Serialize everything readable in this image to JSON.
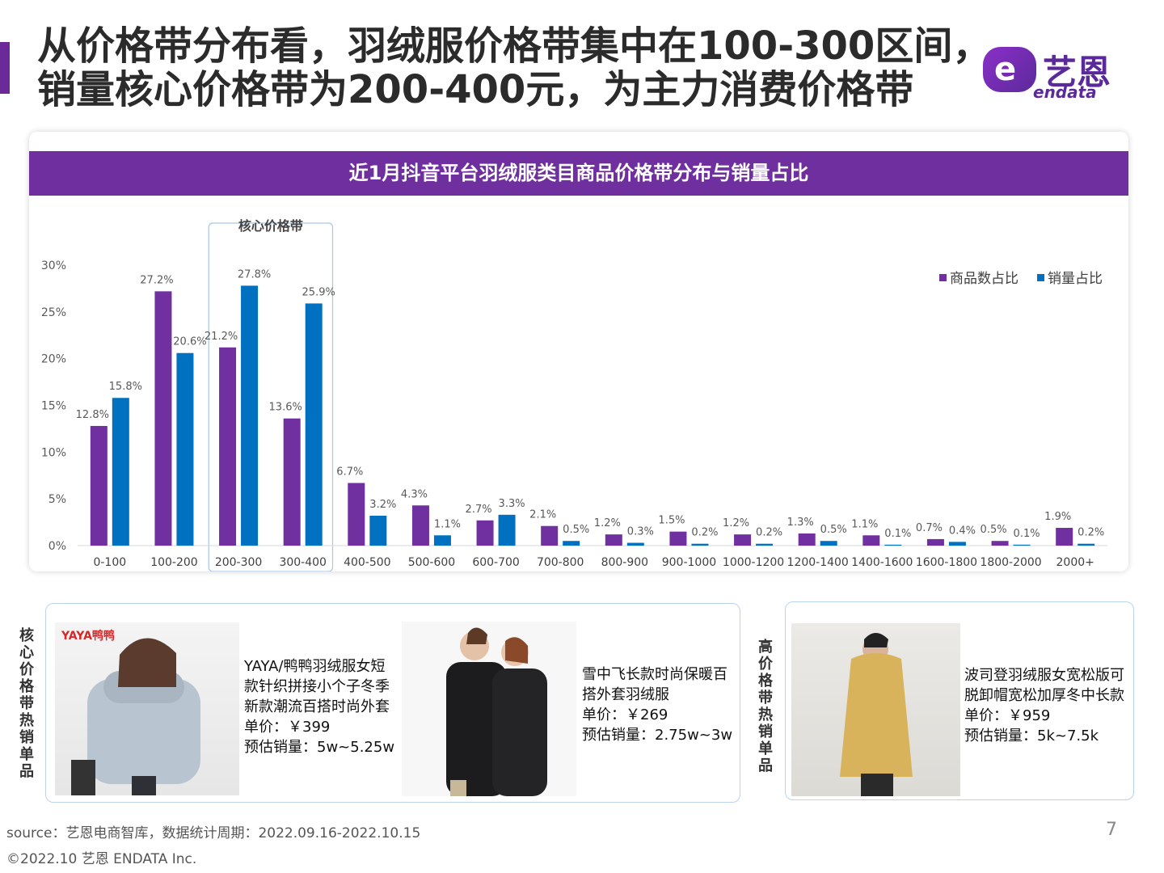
{
  "title": {
    "line1": "从价格带分布看，羽绒服价格带集中在100-300区间，",
    "line2": "销量核心价格带为200-400元，为主力消费价格带"
  },
  "logo": {
    "cn": "艺恩",
    "en": "endata",
    "mark": "e"
  },
  "chart": {
    "header": "近1月抖音平台羽绒服类目商品价格带分布与销量占比",
    "highlight_label": "核心价格带"
  },
  "chart_data": {
    "type": "bar",
    "categories": [
      "0-100",
      "100-200",
      "200-300",
      "300-400",
      "400-500",
      "500-600",
      "600-700",
      "700-800",
      "800-900",
      "900-1000",
      "1000-1200",
      "1200-1400",
      "1400-1600",
      "1600-1800",
      "1800-2000",
      "2000+"
    ],
    "series": [
      {
        "name": "商品数占比",
        "color": "#7030a0",
        "values": [
          12.8,
          27.2,
          21.2,
          13.6,
          6.7,
          4.3,
          2.7,
          2.1,
          1.2,
          1.5,
          1.2,
          1.3,
          1.1,
          0.7,
          0.5,
          1.9
        ]
      },
      {
        "name": "销量占比",
        "color": "#0070c0",
        "values": [
          15.8,
          20.6,
          27.8,
          25.9,
          3.2,
          1.1,
          3.3,
          0.5,
          0.3,
          0.2,
          0.2,
          0.5,
          0.1,
          0.4,
          0.1,
          0.2
        ]
      }
    ],
    "value_suffix": "%",
    "y_ticks": [
      "0%",
      "5%",
      "10%",
      "15%",
      "20%",
      "25%",
      "30%"
    ],
    "ylim": [
      0,
      30
    ],
    "legend_position": "top-right",
    "grid": false,
    "highlight_categories": [
      "200-300",
      "300-400"
    ]
  },
  "core_section": {
    "label": "核心价格带热销单品",
    "products": [
      {
        "brand_tag": "YAYA鸭鸭",
        "lines": [
          "YAYA/鸭鸭羽绒服女短",
          "款针织拼接小个子冬季",
          "新款潮流百搭时尚外套",
          "单价：￥399",
          "预估销量：5w~5.25w"
        ]
      },
      {
        "lines": [
          "雪中飞长款时尚保暖百",
          "搭外套羽绒服",
          "单价：￥269",
          "预估销量：2.75w~3w"
        ]
      }
    ]
  },
  "high_section": {
    "label": "高价格带热销单品",
    "product": {
      "lines": [
        "波司登羽绒服女宽松版可",
        "脱卸帽宽松加厚冬中长款",
        "单价：￥959",
        "预估销量：5k~7.5k"
      ]
    }
  },
  "footer": {
    "source": "source：艺恩电商智库，数据统计周期：2022.09.16-2022.10.15",
    "copyright": "©2022.10 艺恩 ENDATA Inc.",
    "page": "7"
  }
}
